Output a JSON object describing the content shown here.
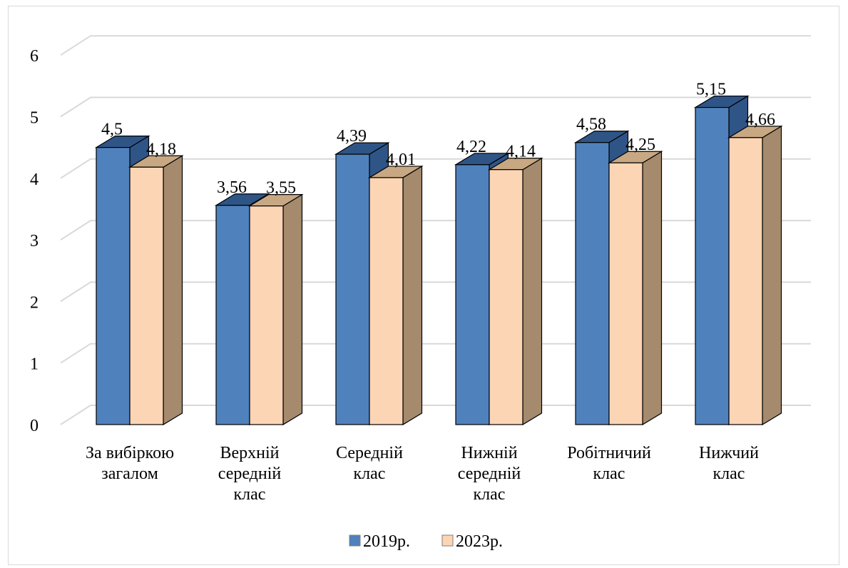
{
  "chart_data": {
    "type": "bar",
    "variant": "3d-clustered-column",
    "title": "",
    "xlabel": "",
    "ylabel": "",
    "ylim": [
      0,
      6
    ],
    "yticks": [
      0,
      1,
      2,
      3,
      4,
      5,
      6
    ],
    "ytick_labels": [
      "0",
      "1",
      "2",
      "3",
      "4",
      "5",
      "6"
    ],
    "grid": true,
    "legend_position": "bottom",
    "categories": [
      [
        "За вибіркою",
        "загалом"
      ],
      [
        "Верхній",
        "середній",
        "клас"
      ],
      [
        "Середній",
        "клас"
      ],
      [
        "Нижній",
        "середній",
        "клас"
      ],
      [
        "Робітничий",
        "клас"
      ],
      [
        "Нижчий",
        "клас"
      ]
    ],
    "series": [
      {
        "name": "2019р.",
        "values": [
          4.5,
          3.56,
          4.39,
          4.22,
          4.58,
          5.15
        ],
        "value_labels": [
          "4,5",
          "3,56",
          "4,39",
          "4,22",
          "4,58",
          "5,15"
        ],
        "color": "#4f81bd",
        "top_color": "#2f5587",
        "side_color": "#2f5587"
      },
      {
        "name": "2023р.",
        "values": [
          4.18,
          3.55,
          4.01,
          4.14,
          4.25,
          4.66
        ],
        "value_labels": [
          "4,18",
          "3,55",
          "4,01",
          "4,14",
          "4,25",
          "4,66"
        ],
        "color": "#fcd5b5",
        "top_color": "#c8a883",
        "side_color": "#a58a6d"
      }
    ],
    "gridline_color": "#d9d9d9"
  }
}
